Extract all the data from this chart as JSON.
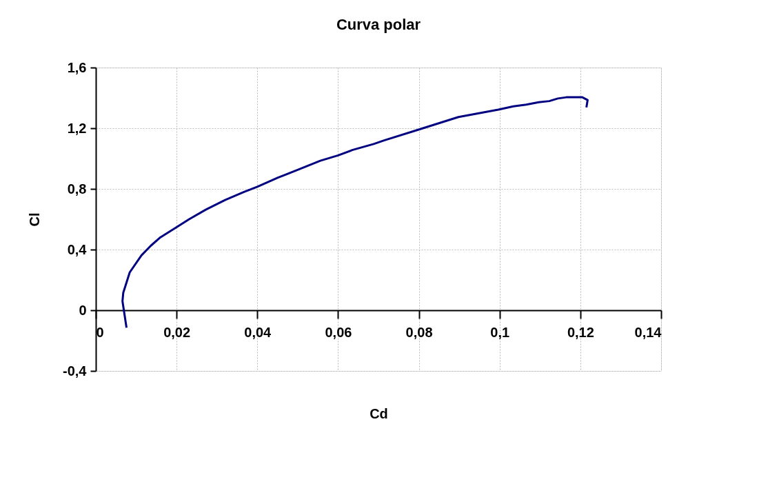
{
  "chart_data": {
    "type": "line",
    "title": "Curva polar",
    "xlabel": "Cd",
    "ylabel": "Cl",
    "xlim": [
      0,
      0.14
    ],
    "ylim": [
      -0.4,
      1.6
    ],
    "xticks": [
      {
        "value": 0,
        "label": "0"
      },
      {
        "value": 0.02,
        "label": "0,02"
      },
      {
        "value": 0.04,
        "label": "0,04"
      },
      {
        "value": 0.06,
        "label": "0,06"
      },
      {
        "value": 0.08,
        "label": "0,08"
      },
      {
        "value": 0.1,
        "label": "0,1"
      },
      {
        "value": 0.12,
        "label": "0,12"
      },
      {
        "value": 0.14,
        "label": "0,14"
      }
    ],
    "yticks": [
      {
        "value": -0.4,
        "label": "-0,4"
      },
      {
        "value": 0,
        "label": "0"
      },
      {
        "value": 0.4,
        "label": "0,4"
      },
      {
        "value": 0.8,
        "label": "0,8"
      },
      {
        "value": 1.2,
        "label": "1,2"
      },
      {
        "value": 1.6,
        "label": "1,6"
      }
    ],
    "grid": true,
    "marker": "none",
    "line_style": "solid",
    "series": [
      {
        "color": "#000080",
        "x": [
          0.0076,
          0.0066,
          0.0068,
          0.0084,
          0.0113,
          0.0136,
          0.016,
          0.0198,
          0.0231,
          0.0273,
          0.032,
          0.0367,
          0.04,
          0.0451,
          0.0504,
          0.0556,
          0.06,
          0.0635,
          0.0688,
          0.0714,
          0.0798,
          0.0898,
          0.0997,
          0.1034,
          0.1066,
          0.1097,
          0.1123,
          0.1144,
          0.1165,
          0.1205,
          0.1218,
          0.1215
        ],
        "values": [
          -0.115,
          0.06,
          0.116,
          0.25,
          0.362,
          0.425,
          0.481,
          0.544,
          0.6,
          0.664,
          0.727,
          0.78,
          0.814,
          0.874,
          0.93,
          0.986,
          1.021,
          1.056,
          1.096,
          1.12,
          1.19,
          1.274,
          1.323,
          1.344,
          1.356,
          1.372,
          1.379,
          1.396,
          1.404,
          1.404,
          1.386,
          1.337
        ]
      }
    ]
  }
}
